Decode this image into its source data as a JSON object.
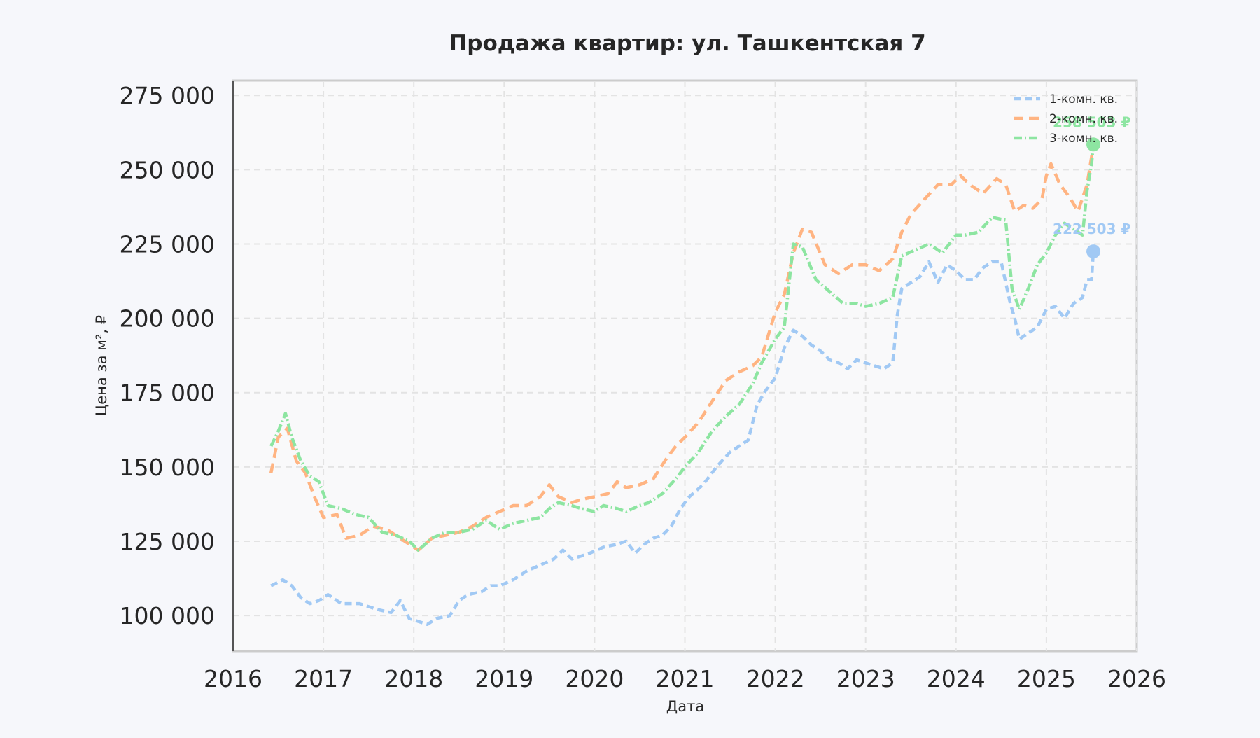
{
  "chart_data": {
    "type": "line",
    "title": "Продажа квартир: ул. Ташкентская 7",
    "xlabel": "Дата",
    "ylabel": "Цена за м², ₽",
    "xlim": [
      2016,
      2026
    ],
    "ylim": [
      88000,
      280000
    ],
    "x_ticks": [
      2016,
      2017,
      2018,
      2019,
      2020,
      2021,
      2022,
      2023,
      2024,
      2025,
      2026
    ],
    "x_tick_labels": [
      "2016",
      "2017",
      "2018",
      "2019",
      "2020",
      "2021",
      "2022",
      "2023",
      "2024",
      "2025",
      "2026"
    ],
    "y_ticks": [
      100000,
      125000,
      150000,
      175000,
      200000,
      225000,
      250000,
      275000
    ],
    "y_tick_labels": [
      "100 000",
      "125 000",
      "150 000",
      "175 000",
      "200 000",
      "225 000",
      "250 000",
      "275 000"
    ],
    "grid": true,
    "legend_position": "top-right",
    "series": [
      {
        "name": "1-комн. кв.",
        "color": "#a1c9f4",
        "dash": "10,6",
        "x": [
          2016.42,
          2016.55,
          2016.65,
          2016.75,
          2016.85,
          2016.95,
          2017.05,
          2017.2,
          2017.4,
          2017.6,
          2017.75,
          2017.85,
          2017.95,
          2018.05,
          2018.15,
          2018.25,
          2018.4,
          2018.5,
          2018.6,
          2018.75,
          2018.85,
          2018.95,
          2019.1,
          2019.25,
          2019.4,
          2019.55,
          2019.65,
          2019.75,
          2019.85,
          2019.95,
          2020.1,
          2020.25,
          2020.35,
          2020.45,
          2020.55,
          2020.65,
          2020.75,
          2020.85,
          2020.95,
          2021.05,
          2021.2,
          2021.35,
          2021.5,
          2021.6,
          2021.7,
          2021.8,
          2021.9,
          2022.0,
          2022.1,
          2022.2,
          2022.3,
          2022.4,
          2022.5,
          2022.6,
          2022.7,
          2022.8,
          2022.9,
          2023.0,
          2023.1,
          2023.2,
          2023.3,
          2023.35,
          2023.4,
          2023.5,
          2023.6,
          2023.7,
          2023.8,
          2023.9,
          2024.0,
          2024.1,
          2024.2,
          2024.3,
          2024.4,
          2024.5,
          2024.6,
          2024.65,
          2024.7,
          2024.8,
          2024.9,
          2025.0,
          2025.1,
          2025.2,
          2025.3,
          2025.4,
          2025.45,
          2025.5,
          2025.52
        ],
        "y": [
          110000,
          112000,
          110000,
          106000,
          104000,
          105000,
          107000,
          104000,
          104000,
          102000,
          101000,
          105000,
          99000,
          98000,
          97000,
          99000,
          100000,
          105000,
          107000,
          108000,
          110000,
          110000,
          112000,
          115000,
          117000,
          119000,
          122000,
          119000,
          120000,
          121000,
          123000,
          124000,
          125000,
          121000,
          124000,
          126000,
          127000,
          130000,
          136000,
          140000,
          144000,
          150000,
          155000,
          157000,
          159000,
          171000,
          176000,
          180000,
          190000,
          196000,
          194000,
          191000,
          189000,
          186000,
          185000,
          183000,
          186000,
          185000,
          184000,
          183000,
          185000,
          201000,
          210000,
          212000,
          214000,
          219000,
          212000,
          218000,
          216000,
          213000,
          213000,
          217000,
          219000,
          219000,
          205000,
          200000,
          193000,
          195000,
          197000,
          203000,
          204000,
          200000,
          205000,
          207000,
          213000,
          213000,
          222503
        ]
      },
      {
        "name": "2-комн. кв.",
        "color": "#ffb482",
        "dash": "14,8",
        "x": [
          2016.42,
          2016.5,
          2016.6,
          2016.7,
          2016.8,
          2016.9,
          2017.0,
          2017.15,
          2017.25,
          2017.4,
          2017.55,
          2017.7,
          2017.85,
          2017.95,
          2018.05,
          2018.2,
          2018.35,
          2018.5,
          2018.65,
          2018.8,
          2018.95,
          2019.1,
          2019.25,
          2019.4,
          2019.5,
          2019.6,
          2019.75,
          2019.85,
          2020.0,
          2020.15,
          2020.25,
          2020.35,
          2020.5,
          2020.65,
          2020.8,
          2020.9,
          2021.0,
          2021.15,
          2021.3,
          2021.45,
          2021.6,
          2021.75,
          2021.85,
          2022.0,
          2022.1,
          2022.2,
          2022.3,
          2022.4,
          2022.55,
          2022.7,
          2022.85,
          2023.0,
          2023.15,
          2023.3,
          2023.4,
          2023.5,
          2023.65,
          2023.8,
          2023.95,
          2024.05,
          2024.15,
          2024.3,
          2024.45,
          2024.55,
          2024.65,
          2024.75,
          2024.85,
          2024.95,
          2025.0,
          2025.05,
          2025.15,
          2025.25,
          2025.35,
          2025.45,
          2025.52
        ],
        "y": [
          148000,
          160000,
          163000,
          152000,
          148000,
          140000,
          133000,
          134000,
          126000,
          127000,
          130000,
          129000,
          126000,
          124000,
          122000,
          126000,
          127000,
          128000,
          130000,
          133000,
          135000,
          137000,
          137000,
          140000,
          144000,
          140000,
          138000,
          139000,
          140000,
          141000,
          145000,
          143000,
          144000,
          146000,
          153000,
          157000,
          160000,
          165000,
          172000,
          179000,
          182000,
          184000,
          187000,
          202000,
          208000,
          222000,
          230000,
          229000,
          218000,
          215000,
          218000,
          218000,
          216000,
          220000,
          229000,
          235000,
          240000,
          245000,
          245000,
          248000,
          245000,
          242000,
          247000,
          245000,
          236000,
          238000,
          237000,
          240000,
          248000,
          252000,
          245000,
          241000,
          236000,
          245000,
          258000
        ]
      },
      {
        "name": "3-комн. кв.",
        "color": "#8de5a1",
        "dash": "12,4,2,4",
        "x": [
          2016.42,
          2016.5,
          2016.58,
          2016.65,
          2016.75,
          2016.85,
          2016.95,
          2017.05,
          2017.2,
          2017.35,
          2017.5,
          2017.65,
          2017.8,
          2017.95,
          2018.05,
          2018.2,
          2018.35,
          2018.5,
          2018.65,
          2018.8,
          2018.95,
          2019.1,
          2019.25,
          2019.4,
          2019.5,
          2019.6,
          2019.75,
          2019.85,
          2020.0,
          2020.1,
          2020.25,
          2020.35,
          2020.5,
          2020.6,
          2020.75,
          2020.9,
          2021.0,
          2021.15,
          2021.3,
          2021.45,
          2021.6,
          2021.75,
          2021.85,
          2022.0,
          2022.1,
          2022.2,
          2022.3,
          2022.45,
          2022.6,
          2022.75,
          2022.9,
          2023.0,
          2023.15,
          2023.3,
          2023.4,
          2023.55,
          2023.7,
          2023.85,
          2024.0,
          2024.1,
          2024.25,
          2024.4,
          2024.55,
          2024.62,
          2024.7,
          2024.8,
          2024.9,
          2025.0,
          2025.1,
          2025.2,
          2025.3,
          2025.4,
          2025.45,
          2025.5,
          2025.52
        ],
        "y": [
          157000,
          162000,
          168000,
          160000,
          152000,
          147000,
          145000,
          137000,
          136000,
          134000,
          133000,
          128000,
          127000,
          125000,
          122000,
          126000,
          128000,
          128000,
          129000,
          132000,
          129000,
          131000,
          132000,
          133000,
          136000,
          138000,
          137000,
          136000,
          135000,
          137000,
          136000,
          135000,
          137000,
          138000,
          141000,
          146000,
          150000,
          155000,
          162000,
          167000,
          171000,
          178000,
          185000,
          193000,
          197000,
          225000,
          224000,
          213000,
          209000,
          205000,
          205000,
          204000,
          205000,
          207000,
          221000,
          223000,
          225000,
          222000,
          228000,
          228000,
          229000,
          234000,
          233000,
          210000,
          203000,
          210000,
          218000,
          222000,
          228000,
          232000,
          230000,
          228000,
          243000,
          252000,
          258503
        ]
      }
    ],
    "annotations": [
      {
        "text": "222 503 ₽",
        "series": "1-комн. кв.",
        "x": 2025.52,
        "y": 222503,
        "color": "#a1c9f4"
      },
      {
        "text": "258 503 ₽",
        "series": "3-комн. кв.",
        "x": 2025.52,
        "y": 258503,
        "color": "#8de5a1"
      }
    ]
  }
}
